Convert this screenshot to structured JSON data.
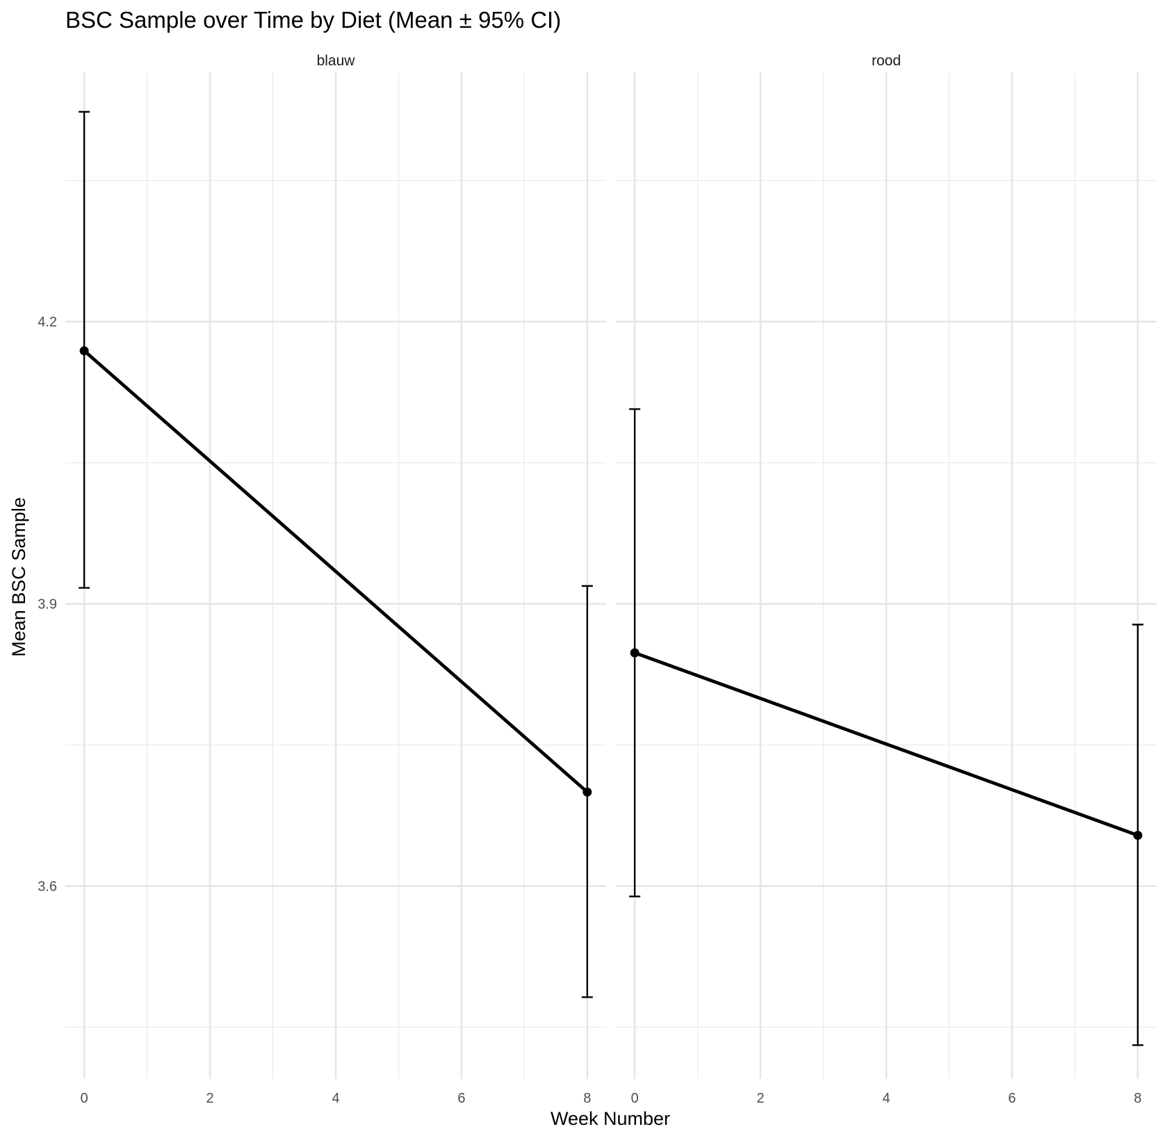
{
  "chart_data": {
    "type": "line",
    "title": "BSC Sample over Time by Diet (Mean ± 95% CI)",
    "xlabel": "Week Number",
    "ylabel": "Mean BSC Sample",
    "xlim": [
      -0.3,
      8.3
    ],
    "ylim": [
      3.395,
      4.465
    ],
    "x_ticks": [
      0,
      2,
      4,
      6,
      8
    ],
    "y_ticks": [
      3.6,
      3.9,
      4.2
    ],
    "grid": true,
    "panels": [
      {
        "name": "blauw",
        "points": [
          {
            "x": 0,
            "y": 4.169,
            "lower": 3.917,
            "upper": 4.423
          },
          {
            "x": 8,
            "y": 3.7,
            "lower": 3.482,
            "upper": 3.919
          }
        ]
      },
      {
        "name": "rood",
        "points": [
          {
            "x": 0,
            "y": 3.848,
            "lower": 3.589,
            "upper": 4.107
          },
          {
            "x": 8,
            "y": 3.654,
            "lower": 3.431,
            "upper": 3.878
          }
        ]
      }
    ],
    "colors": {
      "line": "#000000",
      "grid": "#e6e6e6",
      "background": "#ffffff"
    }
  }
}
